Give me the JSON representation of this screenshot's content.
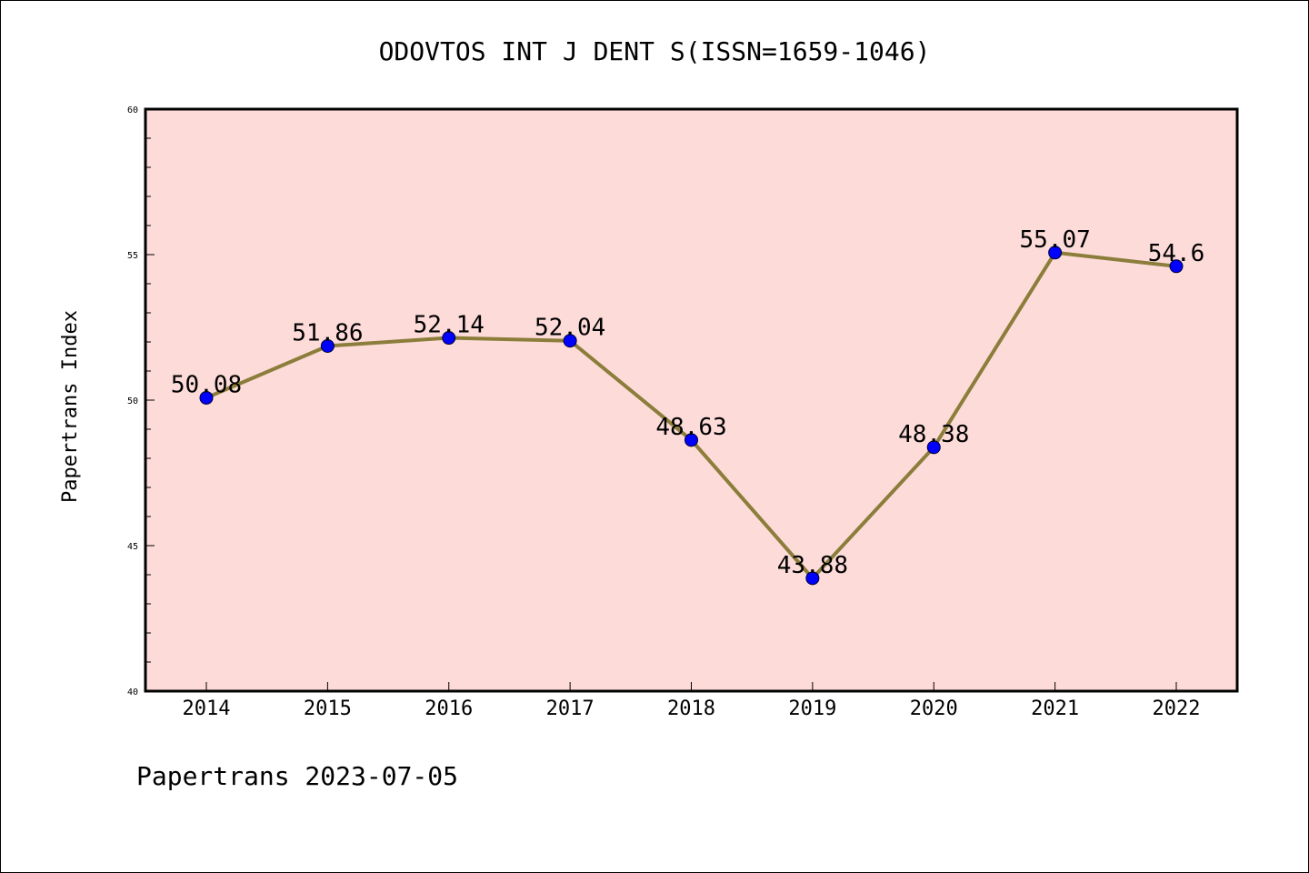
{
  "chart_data": {
    "type": "line",
    "title": "ODOVTOS INT J DENT S(ISSN=1659-1046)",
    "xlabel": "",
    "ylabel": "Papertrans Index",
    "categories": [
      "2014",
      "2015",
      "2016",
      "2017",
      "2018",
      "2019",
      "2020",
      "2021",
      "2022"
    ],
    "series": [
      {
        "values": [
          50.08,
          51.86,
          52.14,
          52.04,
          48.63,
          43.88,
          48.38,
          55.07,
          54.6
        ],
        "data_labels": [
          "50.08",
          "51.86",
          "52.14",
          "52.04",
          "48.63",
          "43.88",
          "48.38",
          "55.07",
          "54.6"
        ],
        "line_color": "#8b7d3a",
        "marker_color": "#0000ff"
      }
    ],
    "ylim": [
      40,
      60
    ],
    "yticks": [
      "40",
      "45",
      "50",
      "55",
      "60"
    ],
    "grid": false,
    "plot_background": "#fddbd9"
  },
  "footer": "Papertrans 2023-07-05"
}
